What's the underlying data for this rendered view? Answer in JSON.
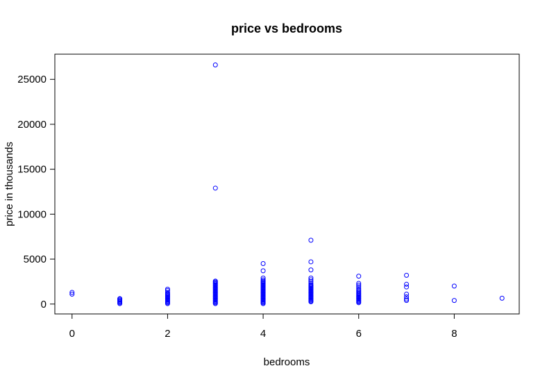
{
  "chart_data": {
    "type": "scatter",
    "title": "price vs bedrooms",
    "xlabel": "bedrooms",
    "ylabel": "price in thousands",
    "xlim": [
      -0.36,
      9.36
    ],
    "ylim": [
      -1100,
      27800
    ],
    "xticks": [
      0,
      2,
      4,
      6,
      8
    ],
    "yticks": [
      0,
      5000,
      10000,
      15000,
      20000,
      25000
    ],
    "grid": false,
    "legend": "none",
    "marker_color": "#0000ff",
    "series": [
      {
        "points": [
          [
            0,
            1100
          ],
          [
            0,
            1300
          ],
          [
            1,
            50
          ],
          [
            1,
            150
          ],
          [
            1,
            250
          ],
          [
            1,
            350
          ],
          [
            1,
            450
          ],
          [
            1,
            550
          ],
          [
            1,
            600
          ],
          [
            2,
            50
          ],
          [
            2,
            150
          ],
          [
            2,
            250
          ],
          [
            2,
            350
          ],
          [
            2,
            450
          ],
          [
            2,
            550
          ],
          [
            2,
            650
          ],
          [
            2,
            750
          ],
          [
            2,
            850
          ],
          [
            2,
            950
          ],
          [
            2,
            1050
          ],
          [
            2,
            1150
          ],
          [
            2,
            1300
          ],
          [
            2,
            1500
          ],
          [
            2,
            1650
          ],
          [
            3,
            50
          ],
          [
            3,
            150
          ],
          [
            3,
            250
          ],
          [
            3,
            350
          ],
          [
            3,
            450
          ],
          [
            3,
            550
          ],
          [
            3,
            650
          ],
          [
            3,
            750
          ],
          [
            3,
            850
          ],
          [
            3,
            950
          ],
          [
            3,
            1050
          ],
          [
            3,
            1150
          ],
          [
            3,
            1250
          ],
          [
            3,
            1350
          ],
          [
            3,
            1450
          ],
          [
            3,
            1550
          ],
          [
            3,
            1650
          ],
          [
            3,
            1750
          ],
          [
            3,
            1850
          ],
          [
            3,
            1950
          ],
          [
            3,
            2050
          ],
          [
            3,
            2150
          ],
          [
            3,
            2250
          ],
          [
            3,
            2350
          ],
          [
            3,
            2450
          ],
          [
            3,
            2550
          ],
          [
            3,
            12900
          ],
          [
            3,
            26600
          ],
          [
            4,
            50
          ],
          [
            4,
            150
          ],
          [
            4,
            250
          ],
          [
            4,
            350
          ],
          [
            4,
            450
          ],
          [
            4,
            550
          ],
          [
            4,
            650
          ],
          [
            4,
            750
          ],
          [
            4,
            850
          ],
          [
            4,
            950
          ],
          [
            4,
            1050
          ],
          [
            4,
            1150
          ],
          [
            4,
            1250
          ],
          [
            4,
            1350
          ],
          [
            4,
            1450
          ],
          [
            4,
            1550
          ],
          [
            4,
            1650
          ],
          [
            4,
            1750
          ],
          [
            4,
            1850
          ],
          [
            4,
            1950
          ],
          [
            4,
            2050
          ],
          [
            4,
            2150
          ],
          [
            4,
            2250
          ],
          [
            4,
            2350
          ],
          [
            4,
            2450
          ],
          [
            4,
            2550
          ],
          [
            4,
            2700
          ],
          [
            4,
            2900
          ],
          [
            4,
            3700
          ],
          [
            4,
            4500
          ],
          [
            5,
            250
          ],
          [
            5,
            350
          ],
          [
            5,
            450
          ],
          [
            5,
            550
          ],
          [
            5,
            650
          ],
          [
            5,
            750
          ],
          [
            5,
            850
          ],
          [
            5,
            950
          ],
          [
            5,
            1050
          ],
          [
            5,
            1150
          ],
          [
            5,
            1250
          ],
          [
            5,
            1350
          ],
          [
            5,
            1450
          ],
          [
            5,
            1550
          ],
          [
            5,
            1650
          ],
          [
            5,
            1750
          ],
          [
            5,
            1850
          ],
          [
            5,
            1950
          ],
          [
            5,
            2050
          ],
          [
            5,
            2150
          ],
          [
            5,
            2300
          ],
          [
            5,
            2500
          ],
          [
            5,
            2700
          ],
          [
            5,
            2900
          ],
          [
            5,
            3800
          ],
          [
            5,
            4700
          ],
          [
            5,
            7100
          ],
          [
            6,
            150
          ],
          [
            6,
            250
          ],
          [
            6,
            350
          ],
          [
            6,
            450
          ],
          [
            6,
            550
          ],
          [
            6,
            650
          ],
          [
            6,
            750
          ],
          [
            6,
            850
          ],
          [
            6,
            950
          ],
          [
            6,
            1050
          ],
          [
            6,
            1150
          ],
          [
            6,
            1250
          ],
          [
            6,
            1400
          ],
          [
            6,
            1550
          ],
          [
            6,
            1700
          ],
          [
            6,
            1900
          ],
          [
            6,
            2100
          ],
          [
            6,
            2300
          ],
          [
            6,
            3100
          ],
          [
            7,
            400
          ],
          [
            7,
            550
          ],
          [
            7,
            800
          ],
          [
            7,
            1100
          ],
          [
            7,
            1900
          ],
          [
            7,
            2200
          ],
          [
            7,
            3200
          ],
          [
            8,
            400
          ],
          [
            8,
            2000
          ],
          [
            9,
            650
          ]
        ]
      }
    ]
  }
}
